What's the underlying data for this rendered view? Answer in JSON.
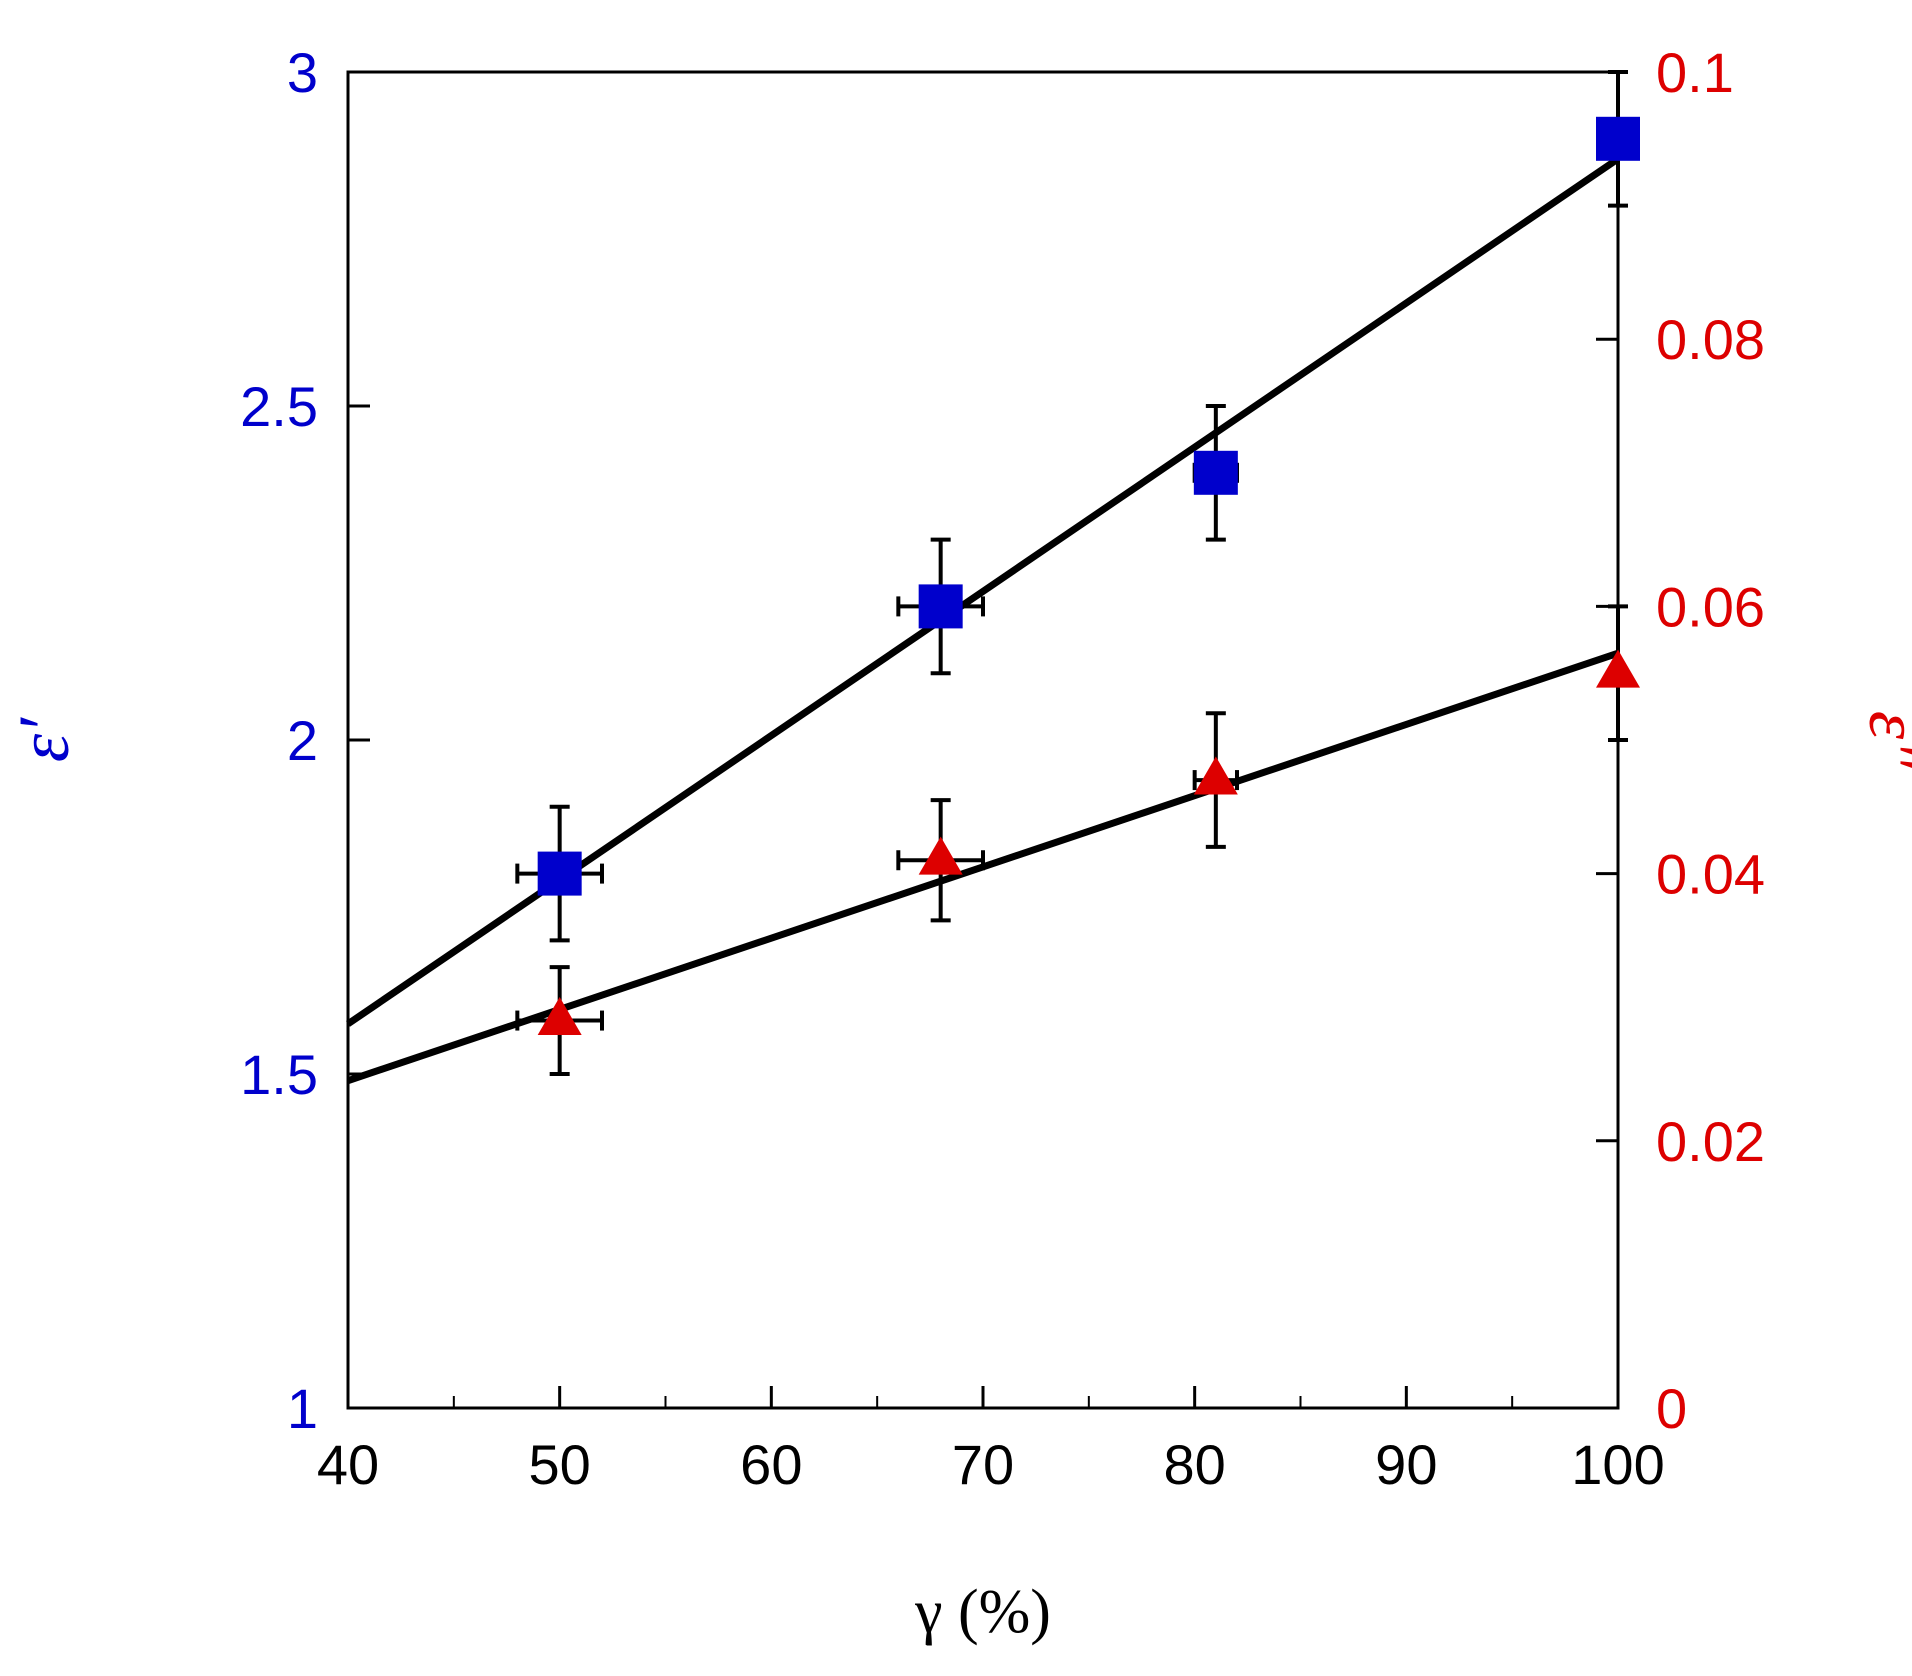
{
  "chart_data": {
    "type": "scatter",
    "title": "",
    "xlabel": "γ (%)",
    "xlim": [
      40,
      100
    ],
    "x_ticks": [
      "40",
      "50",
      "60",
      "70",
      "80",
      "90",
      "100"
    ],
    "y_left": {
      "label": "ε′",
      "lim": [
        1,
        3
      ],
      "ticks": [
        "1",
        "1.5",
        "2",
        "2.5",
        "3"
      ],
      "color": "#0000cc"
    },
    "y_right": {
      "label": "ε″",
      "lim": [
        0,
        0.1
      ],
      "ticks": [
        "0",
        "0.02",
        "0.04",
        "0.06",
        "0.08",
        "0.1"
      ],
      "color": "#dd0000"
    },
    "grid": false,
    "series": [
      {
        "name": "ε′",
        "axis": "left",
        "marker": "square",
        "color": "#0000cc",
        "points": [
          {
            "x": 50,
            "y": 1.8,
            "yerr": 0.1,
            "xerr": 2
          },
          {
            "x": 68,
            "y": 2.2,
            "yerr": 0.1,
            "xerr": 2
          },
          {
            "x": 81,
            "y": 2.4,
            "yerr": 0.1,
            "xerr": 1
          },
          {
            "x": 100,
            "y": 2.9,
            "yerr": 0.1,
            "xerr": 0
          }
        ],
        "fit": {
          "x": [
            40,
            100
          ],
          "y": [
            1.575,
            2.87
          ]
        }
      },
      {
        "name": "ε″",
        "axis": "right",
        "marker": "triangle",
        "color": "#dd0000",
        "points": [
          {
            "x": 50,
            "y": 0.029,
            "yerr": 0.004,
            "xerr": 2
          },
          {
            "x": 68,
            "y": 0.041,
            "yerr": 0.0045,
            "xerr": 2
          },
          {
            "x": 81,
            "y": 0.047,
            "yerr": 0.005,
            "xerr": 1
          },
          {
            "x": 100,
            "y": 0.055,
            "yerr": 0.005,
            "xerr": 0
          }
        ],
        "fit": {
          "x": [
            40,
            100
          ],
          "y": [
            0.0245,
            0.0565
          ]
        }
      }
    ]
  }
}
